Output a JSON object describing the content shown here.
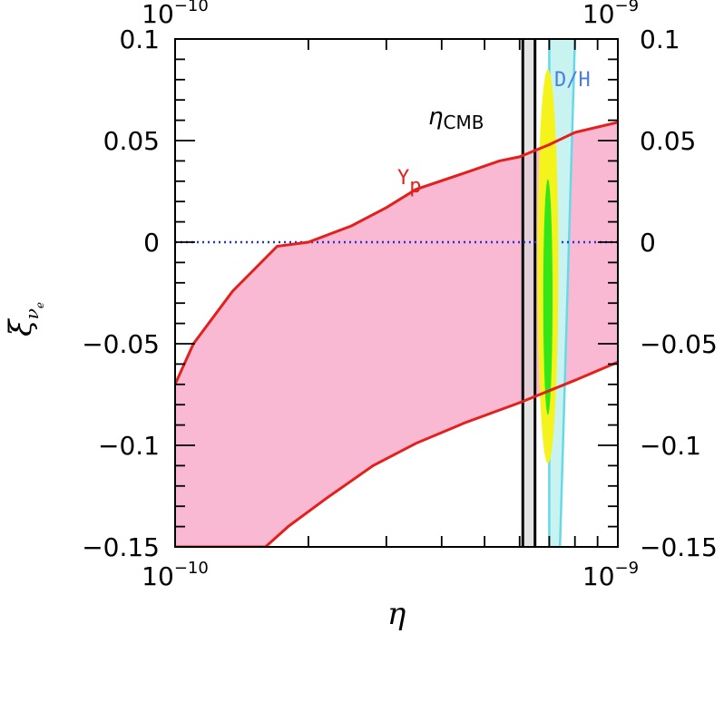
{
  "chart_data": {
    "type": "area",
    "title": "",
    "xlabel": "η",
    "ylabel": "ξ",
    "ylabel_sub": "ν",
    "ylabel_subsub": "e",
    "xscale": "log",
    "xlim": [
      1e-10,
      1e-09
    ],
    "ylim": [
      -0.15,
      0.1
    ],
    "x_tick_labels": [
      {
        "value": 1e-10,
        "base": "10",
        "exp": "−10"
      },
      {
        "value": 1e-09,
        "base": "10",
        "exp": "−9"
      }
    ],
    "y_ticks": [
      0.1,
      0.05,
      0,
      -0.05,
      -0.1,
      -0.15
    ],
    "y_tick_labels": [
      "0.1",
      "0.05",
      "0",
      "−0.05",
      "−0.1",
      "−0.15"
    ],
    "grid": false,
    "colors": {
      "yp_fill": "#f9b9d3",
      "yp_line": "#e3201b",
      "dh_fill": "#c9f3f1",
      "dh_line": "#66d9e8",
      "cmb_fill": "#d9d9d9",
      "cmb_line": "#000000",
      "contour_outer": "#f4f41c",
      "contour_inner": "#33e61a",
      "zero_line": "#2233dd",
      "dh_label": "#4a7ee0"
    },
    "regions": {
      "yp_band": {
        "label": "Y",
        "label_sub": "p",
        "upper": [
          [
            1e-10,
            -0.07
          ],
          [
            1.1e-10,
            -0.05
          ],
          [
            1.35e-10,
            -0.024
          ],
          [
            1.7e-10,
            -0.002
          ],
          [
            2e-10,
            0.0
          ],
          [
            2.5e-10,
            0.008
          ],
          [
            3e-10,
            0.017
          ],
          [
            3.5e-10,
            0.026
          ],
          [
            4.5e-10,
            0.034
          ],
          [
            5.4e-10,
            0.04
          ],
          [
            6e-10,
            0.042
          ],
          [
            7e-10,
            0.048
          ],
          [
            8e-10,
            0.054
          ],
          [
            1e-09,
            0.059
          ]
        ],
        "lower": [
          [
            1e-10,
            -0.15
          ],
          [
            1.6e-10,
            -0.15
          ],
          [
            1.8e-10,
            -0.14
          ],
          [
            2.2e-10,
            -0.126
          ],
          [
            2.8e-10,
            -0.11
          ],
          [
            3.5e-10,
            -0.099
          ],
          [
            4.5e-10,
            -0.089
          ],
          [
            6e-10,
            -0.079
          ],
          [
            8e-10,
            -0.068
          ],
          [
            1e-09,
            -0.059
          ]
        ]
      },
      "dh_band": {
        "label": "D/H",
        "left": [
          [
            7e-10,
            0.1
          ],
          [
            7e-10,
            -0.15
          ]
        ],
        "right": [
          [
            8e-10,
            0.1
          ],
          [
            7.4e-10,
            -0.15
          ]
        ]
      },
      "cmb_band": {
        "label": "η",
        "label_sub": "CMB",
        "x_range": [
          6.1e-10,
          6.5e-10
        ]
      },
      "contour_95": {
        "x_center": 6.95e-10,
        "y_center": -0.012,
        "x_half_log": 0.0235,
        "y_half": 0.097
      },
      "contour_68": {
        "x_center": 6.95e-10,
        "y_center": -0.027,
        "x_half_log": 0.0105,
        "y_half": 0.058
      }
    },
    "zero_line_y": 0
  }
}
